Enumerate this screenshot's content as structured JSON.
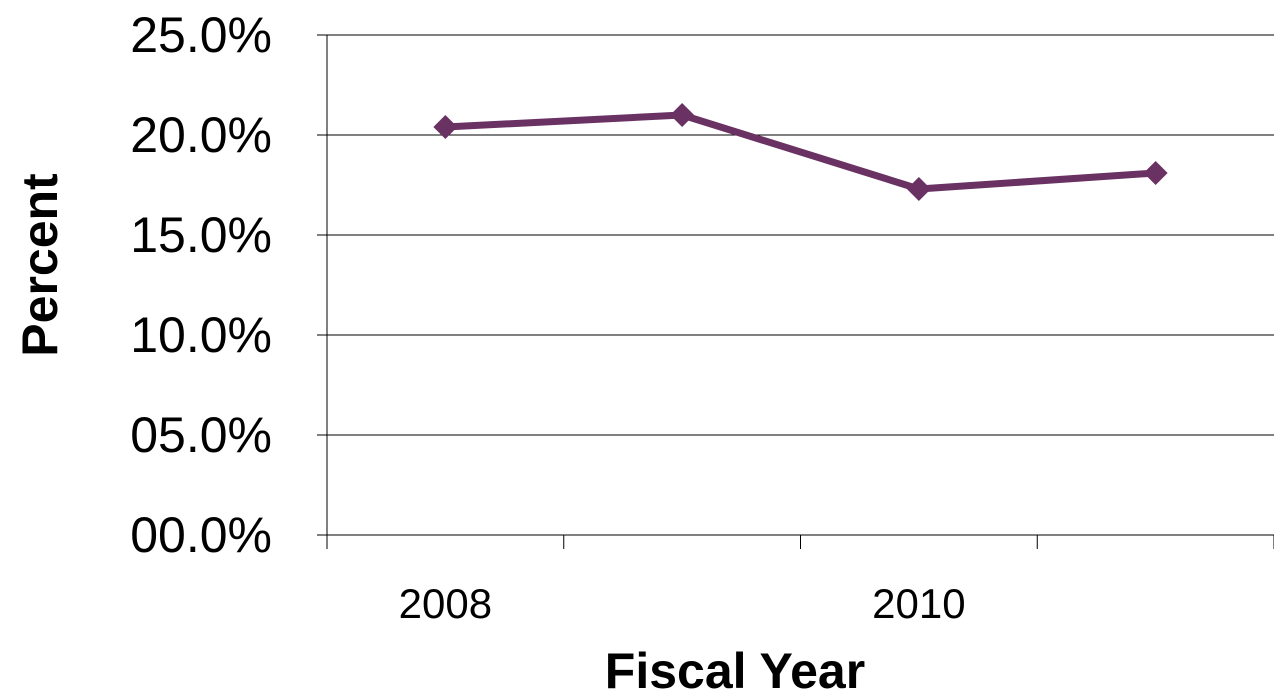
{
  "chart_data": {
    "type": "line",
    "title": "",
    "xlabel": "Fiscal Year",
    "ylabel": "Percent",
    "x": [
      "2008",
      "2009",
      "2010",
      "2011"
    ],
    "x_tick_labels": [
      "2008",
      "",
      "2010",
      ""
    ],
    "y_tick_labels": [
      "00.0%",
      "05.0%",
      "10.0%",
      "15.0%",
      "20.0%",
      "25.0%"
    ],
    "ylim": [
      0,
      25
    ],
    "y_ticks": [
      0,
      5,
      10,
      15,
      20,
      25
    ],
    "grid": true,
    "legend": "none",
    "series": [
      {
        "color": "#6a3163",
        "marker": "diamond",
        "values": [
          20.4,
          21.0,
          17.3,
          18.1
        ]
      }
    ]
  }
}
